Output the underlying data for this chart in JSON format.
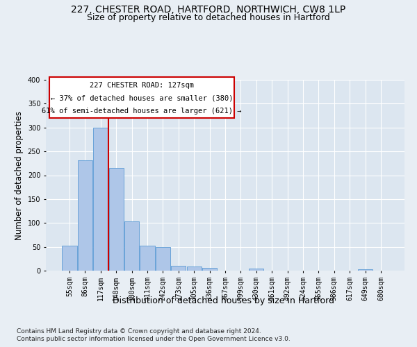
{
  "title1": "227, CHESTER ROAD, HARTFORD, NORTHWICH, CW8 1LP",
  "title2": "Size of property relative to detached houses in Hartford",
  "xlabel": "Distribution of detached houses by size in Hartford",
  "ylabel": "Number of detached properties",
  "footnote1": "Contains HM Land Registry data © Crown copyright and database right 2024.",
  "footnote2": "Contains public sector information licensed under the Open Government Licence v3.0.",
  "annotation_title": "227 CHESTER ROAD: 127sqm",
  "annotation_line1": "← 37% of detached houses are smaller (380)",
  "annotation_line2": "61% of semi-detached houses are larger (621) →",
  "bar_categories": [
    "55sqm",
    "86sqm",
    "117sqm",
    "148sqm",
    "180sqm",
    "211sqm",
    "242sqm",
    "273sqm",
    "305sqm",
    "336sqm",
    "367sqm",
    "399sqm",
    "430sqm",
    "461sqm",
    "492sqm",
    "524sqm",
    "555sqm",
    "586sqm",
    "617sqm",
    "649sqm",
    "680sqm"
  ],
  "bar_values": [
    52,
    232,
    300,
    215,
    103,
    52,
    49,
    10,
    9,
    6,
    0,
    0,
    5,
    0,
    0,
    0,
    0,
    0,
    0,
    3,
    0
  ],
  "bar_color": "#aec6e8",
  "bar_edge_color": "#5b9bd5",
  "vline_x": 2.5,
  "vline_color": "#cc0000",
  "ylim": [
    0,
    400
  ],
  "yticks": [
    0,
    50,
    100,
    150,
    200,
    250,
    300,
    350,
    400
  ],
  "bg_color": "#e8eef4",
  "plot_bg_color": "#dce6f0",
  "grid_color": "#ffffff",
  "annotation_box_color": "#ffffff",
  "annotation_box_edge": "#cc0000",
  "title1_fontsize": 10,
  "title2_fontsize": 9,
  "xlabel_fontsize": 9,
  "ylabel_fontsize": 8.5,
  "tick_fontsize": 7,
  "annotation_fontsize": 7.5,
  "footnote_fontsize": 6.5
}
